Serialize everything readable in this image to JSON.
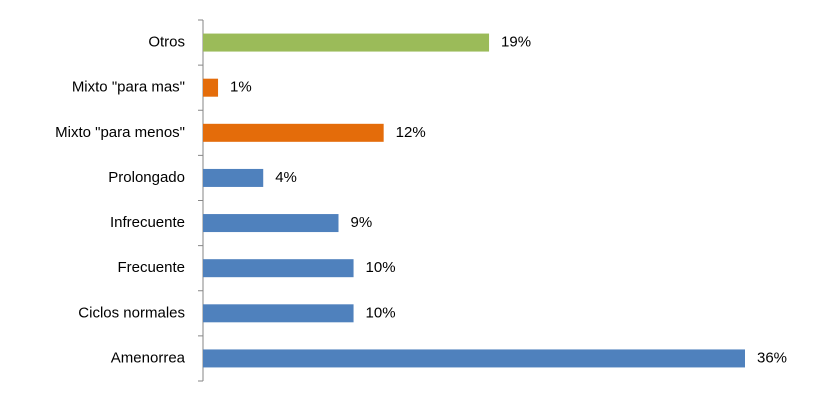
{
  "chart_data": {
    "type": "bar",
    "orientation": "horizontal",
    "categories": [
      "Otros",
      "Mixto \"para mas\"",
      "Mixto \"para menos\"",
      "Prolongado",
      "Infrecuente",
      "Frecuente",
      "Ciclos normales",
      "Amenorrea"
    ],
    "values": [
      19,
      1,
      12,
      4,
      9,
      10,
      10,
      36
    ],
    "value_labels": [
      "19%",
      "1%",
      "12%",
      "4%",
      "9%",
      "10%",
      "10%",
      "36%"
    ],
    "colors": [
      "#9bbb59",
      "#e46c0a",
      "#e46c0a",
      "#4f81bd",
      "#4f81bd",
      "#4f81bd",
      "#4f81bd",
      "#4f81bd"
    ]
  }
}
